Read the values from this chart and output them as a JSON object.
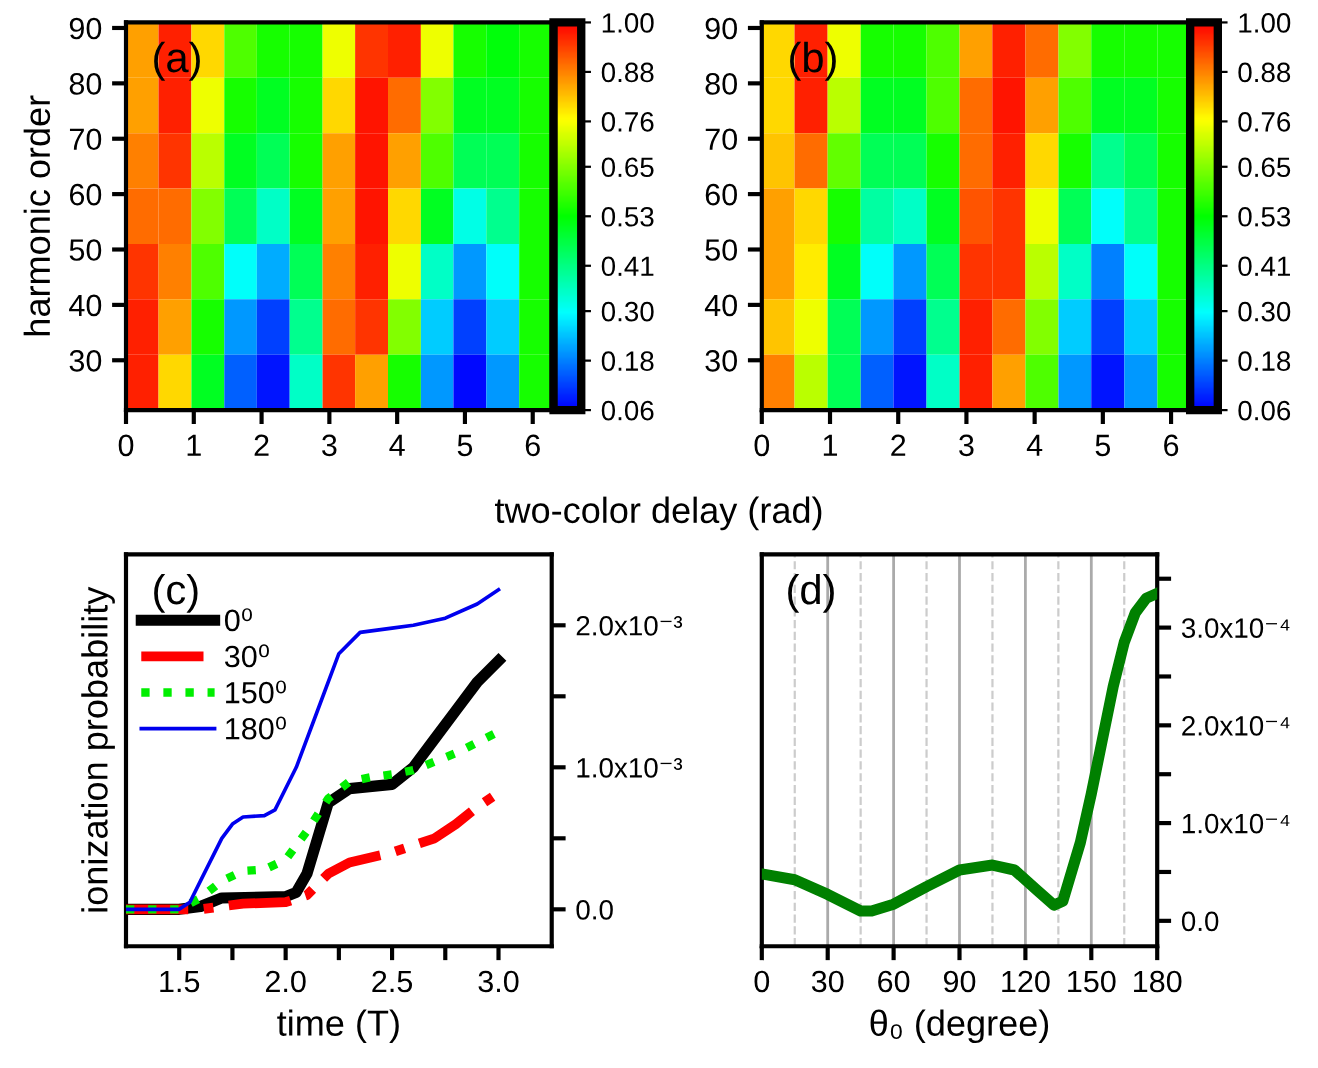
{
  "chart_data": [
    {
      "type": "heatmap",
      "xlabel": "two-color delay (rad)",
      "ylabel": "harmonic order",
      "annotations": [
        "(a)"
      ],
      "x": [
        0.24,
        0.72,
        1.21,
        1.69,
        2.17,
        2.66,
        3.14,
        3.62,
        4.11,
        4.59,
        5.07,
        5.56,
        6.04
      ],
      "y": [
        86,
        76,
        66,
        56,
        46,
        36,
        26
      ],
      "cells": [
        [
          0.85,
          0.97,
          0.8,
          0.6,
          0.55,
          0.55,
          0.75,
          0.95,
          0.97,
          0.75,
          0.55,
          0.52,
          0.55
        ],
        [
          0.85,
          0.97,
          0.75,
          0.55,
          0.5,
          0.55,
          0.8,
          0.98,
          0.9,
          0.65,
          0.5,
          0.5,
          0.55
        ],
        [
          0.88,
          0.95,
          0.7,
          0.5,
          0.45,
          0.55,
          0.85,
          0.98,
          0.85,
          0.6,
          0.45,
          0.45,
          0.55
        ],
        [
          0.9,
          0.9,
          0.65,
          0.45,
          0.35,
          0.5,
          0.85,
          0.98,
          0.8,
          0.5,
          0.32,
          0.4,
          0.55
        ],
        [
          0.95,
          0.88,
          0.6,
          0.3,
          0.22,
          0.45,
          0.88,
          0.97,
          0.75,
          0.35,
          0.2,
          0.3,
          0.55
        ],
        [
          0.97,
          0.85,
          0.55,
          0.2,
          0.12,
          0.4,
          0.9,
          0.95,
          0.65,
          0.25,
          0.12,
          0.25,
          0.55
        ],
        [
          0.97,
          0.8,
          0.5,
          0.15,
          0.08,
          0.35,
          0.95,
          0.85,
          0.55,
          0.2,
          0.07,
          0.2,
          0.55
        ]
      ],
      "xlim": [
        0,
        6.28
      ],
      "xticks": [
        0,
        1,
        2,
        3,
        4,
        5,
        6
      ],
      "ylim": [
        21,
        91
      ],
      "yticks": [
        30,
        40,
        50,
        60,
        70,
        80,
        90
      ],
      "clim": [
        0.06,
        1.0
      ],
      "cticks": [
        {
          "value": 0.06,
          "label": "0.06"
        },
        {
          "value": 0.18,
          "label": "0.18"
        },
        {
          "value": 0.3,
          "label": "0.30"
        },
        {
          "value": 0.41,
          "label": "0.41"
        },
        {
          "value": 0.53,
          "label": "0.53"
        },
        {
          "value": 0.65,
          "label": "0.65"
        },
        {
          "value": 0.76,
          "label": "0.76"
        },
        {
          "value": 0.88,
          "label": "0.88"
        },
        {
          "value": 1.0,
          "label": "1.00"
        }
      ]
    },
    {
      "type": "heatmap",
      "annotations": [
        "(b)"
      ],
      "x": [
        0.24,
        0.72,
        1.21,
        1.69,
        2.17,
        2.66,
        3.14,
        3.62,
        4.11,
        4.59,
        5.07,
        5.56,
        6.04
      ],
      "y": [
        86,
        76,
        66,
        56,
        46,
        36,
        26
      ],
      "cells": [
        [
          0.8,
          0.97,
          0.75,
          0.55,
          0.55,
          0.6,
          0.85,
          0.97,
          0.9,
          0.65,
          0.55,
          0.55,
          0.55
        ],
        [
          0.8,
          0.97,
          0.7,
          0.5,
          0.5,
          0.6,
          0.9,
          0.98,
          0.85,
          0.6,
          0.5,
          0.5,
          0.55
        ],
        [
          0.82,
          0.9,
          0.62,
          0.45,
          0.45,
          0.55,
          0.9,
          0.97,
          0.8,
          0.55,
          0.4,
          0.45,
          0.55
        ],
        [
          0.85,
          0.8,
          0.55,
          0.38,
          0.35,
          0.5,
          0.92,
          0.95,
          0.75,
          0.45,
          0.3,
          0.4,
          0.55
        ],
        [
          0.85,
          0.78,
          0.5,
          0.3,
          0.2,
          0.45,
          0.95,
          0.95,
          0.7,
          0.35,
          0.18,
          0.3,
          0.55
        ],
        [
          0.82,
          0.75,
          0.45,
          0.2,
          0.12,
          0.4,
          0.97,
          0.9,
          0.65,
          0.25,
          0.12,
          0.25,
          0.55
        ],
        [
          0.88,
          0.7,
          0.45,
          0.15,
          0.08,
          0.35,
          0.97,
          0.85,
          0.6,
          0.2,
          0.08,
          0.2,
          0.55
        ]
      ],
      "xlim": [
        0,
        6.28
      ],
      "xticks": [
        0,
        1,
        2,
        3,
        4,
        5,
        6
      ],
      "ylim": [
        21,
        91
      ],
      "yticks": [
        30,
        40,
        50,
        60,
        70,
        80,
        90
      ],
      "clim": [
        0.06,
        1.0
      ],
      "cticks": [
        {
          "value": 0.06,
          "label": "0.06"
        },
        {
          "value": 0.18,
          "label": "0.18"
        },
        {
          "value": 0.3,
          "label": "0.30"
        },
        {
          "value": 0.41,
          "label": "0.41"
        },
        {
          "value": 0.53,
          "label": "0.53"
        },
        {
          "value": 0.65,
          "label": "0.65"
        },
        {
          "value": 0.76,
          "label": "0.76"
        },
        {
          "value": 0.88,
          "label": "0.88"
        },
        {
          "value": 1.0,
          "label": "1.00"
        }
      ]
    },
    {
      "type": "line",
      "xlabel": "time (T)",
      "ylabel": "ionization probability",
      "annotations": [
        "(c)"
      ],
      "legend": "top left",
      "series": [
        {
          "name": "0⁰",
          "color": "#000000",
          "line_style": "solid",
          "x": [
            1.25,
            1.5,
            1.6,
            1.7,
            2.0,
            2.05,
            2.1,
            2.15,
            2.2,
            2.3,
            2.5,
            2.6,
            2.7,
            2.8,
            2.9,
            3.0
          ],
          "values": [
            0,
            0,
            2e-05,
            8e-05,
            9e-05,
            0.00012,
            0.00025,
            0.0005,
            0.00075,
            0.00085,
            0.00088,
            0.001,
            0.0012,
            0.0014,
            0.0016,
            0.00175
          ]
        },
        {
          "name": "30⁰",
          "color": "#ff0000",
          "line_style": "dashdot",
          "x": [
            1.25,
            1.6,
            1.8,
            2.0,
            2.1,
            2.2,
            2.3,
            2.5,
            2.7,
            2.8,
            2.9,
            3.0
          ],
          "values": [
            0,
            0,
            4e-05,
            5e-05,
            0.0001,
            0.00025,
            0.00033,
            0.0004,
            0.0005,
            0.0006,
            0.00072,
            0.00082
          ]
        },
        {
          "name": "150⁰",
          "color": "#00ee00",
          "line_style": "dotted",
          "x": [
            1.25,
            1.5,
            1.6,
            1.7,
            1.8,
            1.9,
            2.0,
            2.1,
            2.2,
            2.3,
            2.4,
            2.5,
            2.6,
            2.8,
            3.0
          ],
          "values": [
            0,
            0,
            8e-05,
            0.0002,
            0.00027,
            0.00028,
            0.00035,
            0.00055,
            0.00078,
            0.0009,
            0.00093,
            0.00095,
            0.00098,
            0.0011,
            0.00125
          ]
        },
        {
          "name": "180⁰",
          "color": "#0000ee",
          "line_style": "solid",
          "x": [
            1.25,
            1.5,
            1.55,
            1.6,
            1.7,
            1.75,
            1.8,
            1.9,
            1.95,
            2.05,
            2.15,
            2.25,
            2.35,
            2.5,
            2.6,
            2.75,
            2.9,
            3.0
          ],
          "values": [
            0,
            0,
            5e-05,
            0.0002,
            0.0005,
            0.0006,
            0.00065,
            0.00066,
            0.0007,
            0.001,
            0.0014,
            0.0018,
            0.00195,
            0.00198,
            0.002,
            0.00205,
            0.00215,
            0.00225
          ]
        }
      ],
      "xlim": [
        1.25,
        3.25
      ],
      "xticks": [
        {
          "value": 1.5,
          "label": "1.5"
        },
        {
          "value": 1.75,
          "label": null
        },
        {
          "value": 2.0,
          "label": "2.0"
        },
        {
          "value": 2.25,
          "label": null
        },
        {
          "value": 2.5,
          "label": "2.5"
        },
        {
          "value": 2.75,
          "label": null
        },
        {
          "value": 3.0,
          "label": "3.0"
        }
      ],
      "ylim": [
        -0.00026,
        0.0025
      ],
      "yticks": [
        {
          "value": 0,
          "label": "0.0"
        },
        {
          "value": 0.0005,
          "label": null
        },
        {
          "value": 0.001,
          "label": "1.0x10⁻³"
        },
        {
          "value": 0.0015,
          "label": null
        },
        {
          "value": 0.002,
          "label": "2.0x10⁻³"
        }
      ]
    },
    {
      "type": "line",
      "xlabel": "θ₀ (degree)",
      "annotations": [
        "(d)"
      ],
      "grid": "x",
      "series": [
        {
          "color": "#008000",
          "line_style": "solid",
          "x": [
            0,
            15,
            30,
            45,
            50,
            60,
            75,
            90,
            105,
            115,
            125,
            133,
            137,
            145,
            150,
            155,
            160,
            165,
            170,
            175,
            180
          ],
          "values": [
            4.8e-05,
            4.2e-05,
            2.7e-05,
            1e-05,
            1e-05,
            1.7e-05,
            3.5e-05,
            5.2e-05,
            5.7e-05,
            5.2e-05,
            3.2e-05,
            1.6e-05,
            2e-05,
            8e-05,
            0.00013,
            0.000185,
            0.00024,
            0.000285,
            0.000315,
            0.00033,
            0.000335
          ]
        }
      ],
      "xlim": [
        0,
        180
      ],
      "xticks": [
        0,
        30,
        60,
        90,
        120,
        150,
        180
      ],
      "ylim": [
        -2.6e-05,
        0.000375
      ],
      "yticks": [
        {
          "value": 0,
          "label": "0.0"
        },
        {
          "value": 5e-05,
          "label": null
        },
        {
          "value": 0.0001,
          "label": "1.0x10⁻⁴"
        },
        {
          "value": 0.00015,
          "label": null
        },
        {
          "value": 0.0002,
          "label": "2.0x10⁻⁴"
        },
        {
          "value": 0.00025,
          "label": null
        },
        {
          "value": 0.0003,
          "label": "3.0x10⁻⁴"
        },
        {
          "value": 0.00035,
          "label": null
        }
      ]
    }
  ]
}
